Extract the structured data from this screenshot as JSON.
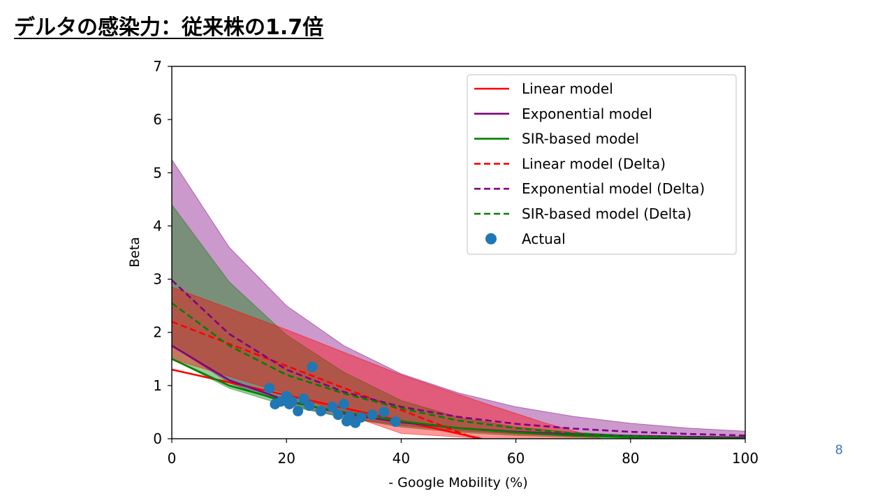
{
  "slide": {
    "title": "デルタの感染力：従来株の1.7倍",
    "page_number": "8"
  },
  "colors": {
    "linear": "#ff0000",
    "exponential": "#800080",
    "sir": "#008000",
    "actual": "#1f77b4",
    "axis": "#000000"
  },
  "chart_data": {
    "type": "line",
    "title": "",
    "xlabel": "- Google Mobility (%)",
    "ylabel": "Beta",
    "xlim": [
      0,
      100
    ],
    "ylim": [
      0,
      7
    ],
    "x_ticks": [
      0,
      20,
      40,
      60,
      80,
      100
    ],
    "y_ticks": [
      0,
      1,
      2,
      3,
      4,
      5,
      6,
      7
    ],
    "grid": false,
    "legend_position": "top-right",
    "legend": [
      {
        "label": "Linear model",
        "color": "#ff0000",
        "style": "solid"
      },
      {
        "label": "Exponential model",
        "color": "#800080",
        "style": "solid"
      },
      {
        "label": "SIR-based model",
        "color": "#008000",
        "style": "solid"
      },
      {
        "label": "Linear model (Delta)",
        "color": "#ff0000",
        "style": "dashed"
      },
      {
        "label": "Exponential model (Delta)",
        "color": "#800080",
        "style": "dashed"
      },
      {
        "label": "SIR-based model (Delta)",
        "color": "#008000",
        "style": "dashed"
      },
      {
        "label": "Actual",
        "color": "#1f77b4",
        "style": "marker"
      }
    ],
    "series": [
      {
        "name": "Linear model",
        "style": "solid",
        "color": "#ff0000",
        "x": [
          0,
          54
        ],
        "y": [
          1.3,
          0
        ]
      },
      {
        "name": "Exponential model",
        "style": "solid",
        "color": "#800080",
        "x": [
          0,
          10,
          20,
          30,
          40,
          50,
          60,
          70,
          80,
          90,
          100
        ],
        "y": [
          1.75,
          1.1,
          0.72,
          0.47,
          0.31,
          0.2,
          0.13,
          0.085,
          0.056,
          0.037,
          0.024
        ]
      },
      {
        "name": "SIR-based model",
        "style": "solid",
        "color": "#008000",
        "x": [
          0,
          10,
          20,
          30,
          40,
          50,
          60,
          70,
          80,
          90,
          100
        ],
        "y": [
          1.5,
          1.0,
          0.7,
          0.5,
          0.33,
          0.2,
          0.12,
          0.06,
          0.03,
          0.015,
          0.005
        ]
      },
      {
        "name": "Linear model (Delta)",
        "style": "dashed",
        "color": "#ff0000",
        "x": [
          0,
          53
        ],
        "y": [
          2.2,
          0
        ]
      },
      {
        "name": "Exponential model (Delta)",
        "style": "dashed",
        "color": "#800080",
        "x": [
          0,
          10,
          20,
          30,
          40,
          50,
          60,
          70,
          80,
          90,
          100
        ],
        "y": [
          2.98,
          1.97,
          1.3,
          0.88,
          0.6,
          0.41,
          0.28,
          0.19,
          0.13,
          0.09,
          0.06
        ]
      },
      {
        "name": "SIR-based model (Delta)",
        "style": "dashed",
        "color": "#008000",
        "x": [
          0,
          10,
          20,
          30,
          40,
          50,
          60,
          70,
          80,
          90,
          100
        ],
        "y": [
          2.55,
          1.75,
          1.2,
          0.85,
          0.57,
          0.34,
          0.2,
          0.1,
          0.05,
          0.02,
          0.01
        ]
      },
      {
        "name": "Actual",
        "style": "marker",
        "color": "#1f77b4",
        "x": [
          17,
          18,
          19,
          20,
          20.5,
          21,
          22,
          23,
          24,
          24.5,
          26,
          28,
          29,
          30,
          30.5,
          31,
          32,
          33,
          35,
          37,
          39
        ],
        "y": [
          0.95,
          0.65,
          0.7,
          0.8,
          0.65,
          0.7,
          0.52,
          0.75,
          0.62,
          1.35,
          0.52,
          0.6,
          0.45,
          0.65,
          0.33,
          0.42,
          0.3,
          0.4,
          0.45,
          0.5,
          0.32
        ]
      }
    ],
    "bands": [
      {
        "model": "Exponential model",
        "color": "#800080",
        "x": [
          0,
          10,
          20,
          30,
          40,
          50,
          60,
          70,
          80,
          90,
          100
        ],
        "upper": [
          5.25,
          3.6,
          2.5,
          1.75,
          1.22,
          0.86,
          0.6,
          0.42,
          0.29,
          0.2,
          0.14
        ],
        "lower": [
          1.75,
          1.05,
          0.65,
          0.4,
          0.25,
          0.15,
          0.09,
          0.05,
          0.03,
          0.02,
          0.01
        ]
      },
      {
        "model": "SIR-based model",
        "color": "#008000",
        "x": [
          0,
          10,
          20,
          30,
          40,
          50,
          60,
          70,
          80,
          90,
          100
        ],
        "upper": [
          4.4,
          2.95,
          1.95,
          1.25,
          0.72,
          0.4,
          0.22,
          0.12,
          0.06,
          0.03,
          0.01
        ],
        "lower": [
          1.5,
          0.95,
          0.62,
          0.4,
          0.22,
          0.12,
          0.06,
          0.03,
          0.01,
          0.0,
          0.0
        ]
      },
      {
        "model": "Linear model",
        "color": "#ff0000",
        "x": [
          0,
          20,
          40,
          55,
          65,
          75
        ],
        "upper": [
          2.85,
          2.05,
          1.2,
          0.65,
          0.3,
          0.0
        ],
        "lower": [
          1.5,
          0.85,
          0.1,
          0.0,
          0.0,
          0.0
        ]
      }
    ]
  }
}
